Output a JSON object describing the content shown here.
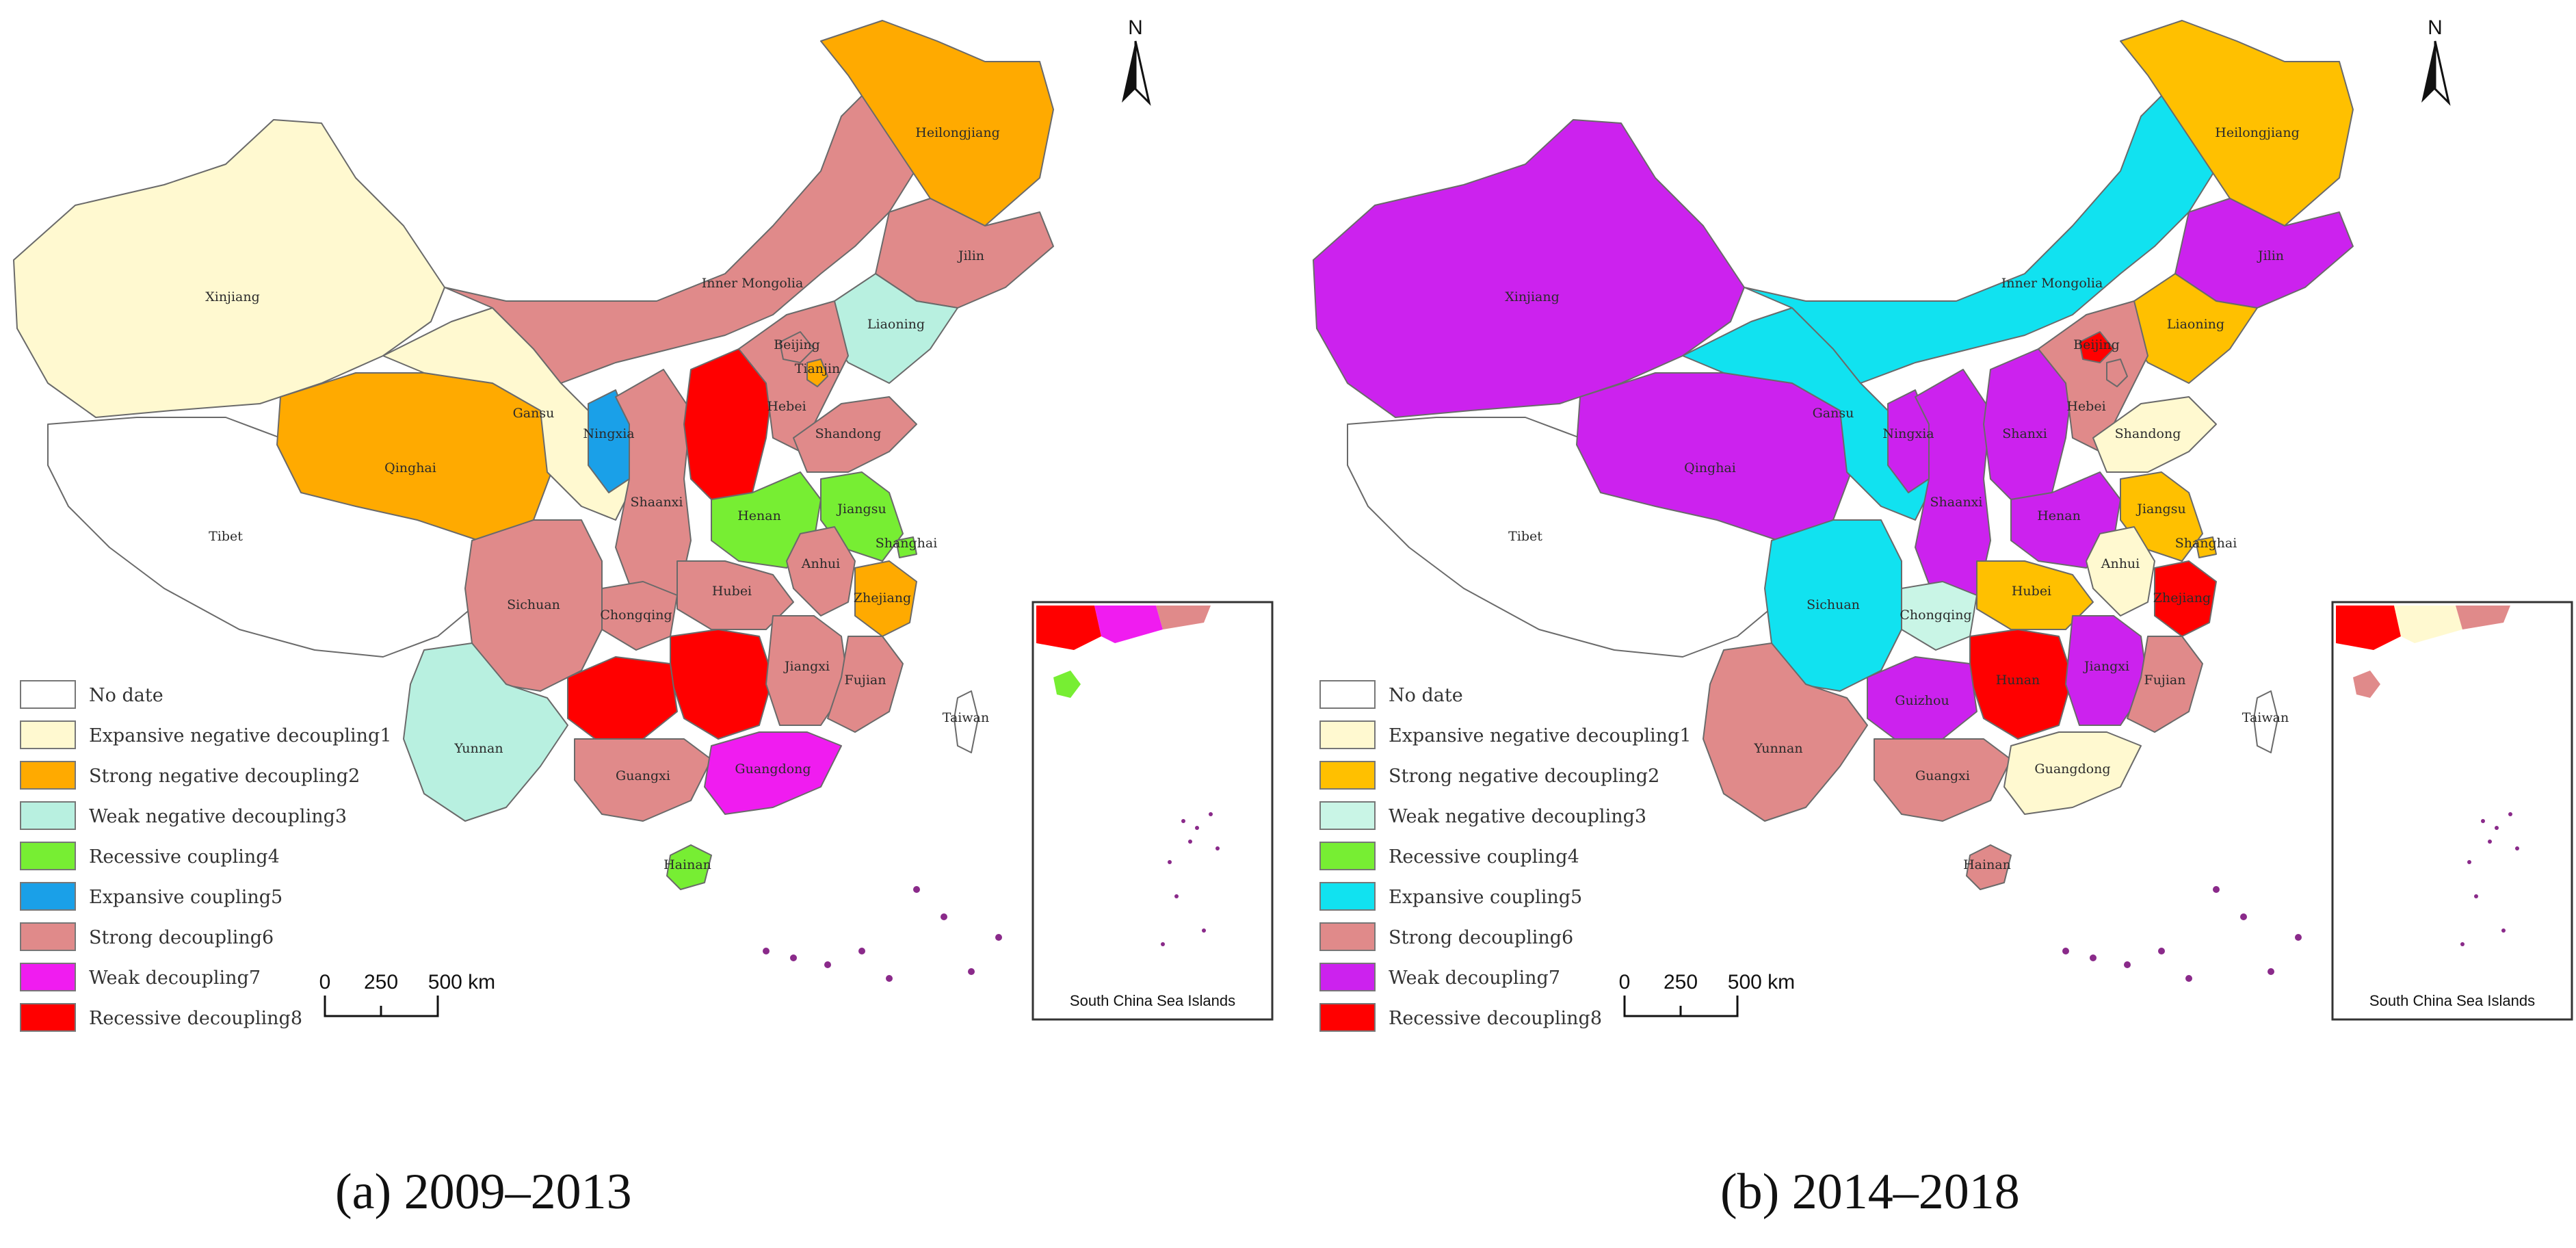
{
  "categories": [
    {
      "key": "none",
      "label": "No date",
      "color": "#ffffff"
    },
    {
      "key": "c1",
      "label": "Expansive negative decoupling1",
      "color": "#fff9d0"
    },
    {
      "key": "c2",
      "label": "Strong negative decoupling2",
      "color": "#ffc000"
    },
    {
      "key": "c3",
      "label": "Weak negative decoupling3",
      "color": "#c9f5e6"
    },
    {
      "key": "c4",
      "label": "Recessive coupling4",
      "color": "#77ee33"
    },
    {
      "key": "c5",
      "label": "Expansive coupling5",
      "color": "#16c8f0"
    },
    {
      "key": "c6",
      "label": "Strong decoupling6",
      "color": "#e08a8a"
    },
    {
      "key": "c7",
      "label": "Weak decoupling7",
      "color": "#ee22ee"
    },
    {
      "key": "c8",
      "label": "Recessive decoupling8",
      "color": "#ff0000"
    }
  ],
  "map_a_overrides": {
    "c2": "#ffaa00",
    "c5": "#1aa0e8",
    "c3": "#b8f0e0",
    "c7": "#f01cf0"
  },
  "map_b_overrides": {
    "c7": "#cc22ee",
    "c5": "#11e2f0"
  },
  "scale": {
    "ticks": [
      "0",
      "250",
      "500 km"
    ]
  },
  "north_label": "N",
  "inset_title": "South China Sea Islands",
  "maps": [
    {
      "id": "a",
      "caption": "(a) 2009–2013",
      "provinces": {
        "Heilongjiang": "c2",
        "Jilin": "c6",
        "Liaoning": "c3",
        "Inner Mongolia": "c6",
        "Xinjiang": "c1",
        "Tibet": "none",
        "Qinghai": "c2",
        "Gansu": "c1",
        "Ningxia": "c5",
        "Shaanxi": "c6",
        "Shanxi": "c8",
        "Hebei": "c6",
        "Beijing": "c6",
        "Tianjin": "c2",
        "Shandong": "c6",
        "Henan": "c4",
        "Jiangsu": "c4",
        "Anhui": "c6",
        "Shanghai": "c4",
        "Zhejiang": "c2",
        "Hubei": "c6",
        "Sichuan": "c6",
        "Chongqing": "c6",
        "Hunan": "c8",
        "Guizhou": "c8",
        "Jiangxi": "c6",
        "Fujian": "c6",
        "Yunnan": "c3",
        "Guangxi": "c6",
        "Guangdong": "c7",
        "Hainan": "c4",
        "Taiwan": "none"
      },
      "labels": {
        "Heilongjiang": "Heilongjiang",
        "Jilin": "Jilin",
        "Liaoning": "Liaoning",
        "Inner Mongolia": "Inner Mongolia",
        "Xinjiang": "Xinjiang",
        "Tibet": "Tibet",
        "Qinghai": "Qinghai",
        "Gansu": "Gansu",
        "Ningxia": "Ningxia",
        "Shaanxi": "Shaanxi",
        "Hebei": "Hebei",
        "Beijing": "Beijing",
        "Tianjin": "Tianjin",
        "Shandong": "Shandong",
        "Henan": "Henan",
        "Jiangsu": "Jiangsu",
        "Anhui": "Anhui",
        "Shanghai": "Shanghai",
        "Zhejiang": "Zhejiang",
        "Hubei": "Hubei",
        "Sichuan": "Sichuan",
        "Chongqing": "Chongqing",
        "Jiangxi": "Jiangxi",
        "Fujian": "Fujian",
        "Yunnan": "Yunnan",
        "Guangxi": "Guangxi",
        "Guangdong": "Guangdong",
        "Hainan": "Hainan",
        "Taiwan": "Taiwan"
      }
    },
    {
      "id": "b",
      "caption": "(b) 2014–2018",
      "provinces": {
        "Heilongjiang": "c2",
        "Jilin": "c7",
        "Liaoning": "c2",
        "Inner Mongolia": "c5",
        "Xinjiang": "c7",
        "Tibet": "none",
        "Qinghai": "c7",
        "Gansu": "c5",
        "Ningxia": "c7",
        "Shaanxi": "c7",
        "Shanxi": "c7",
        "Hebei": "c6",
        "Beijing": "c8",
        "Tianjin": "c6",
        "Shandong": "c1",
        "Henan": "c7",
        "Jiangsu": "c2",
        "Anhui": "c1",
        "Shanghai": "c2",
        "Zhejiang": "c8",
        "Hubei": "c2",
        "Sichuan": "c5",
        "Chongqing": "c3",
        "Hunan": "c8",
        "Guizhou": "c7",
        "Jiangxi": "c7",
        "Fujian": "c6",
        "Yunnan": "c6",
        "Guangxi": "c6",
        "Guangdong": "c1",
        "Hainan": "c6",
        "Taiwan": "none"
      },
      "labels": {
        "Heilongjiang": "Heilongjiang",
        "Jilin": "Jilin",
        "Liaoning": "Liaoning",
        "Inner Mongolia": "Inner Mongolia",
        "Xinjiang": "Xinjiang",
        "Tibet": "Tibet",
        "Qinghai": "Qinghai",
        "Gansu": "Gansu",
        "Ningxia": "Ningxia",
        "Shaanxi": "Shaanxi",
        "Shanxi": "Shanxi",
        "Hebei": "Hebei",
        "Beijing": "Beijing",
        "Shandong": "Shandong",
        "Henan": "Henan",
        "Jiangsu": "Jiangsu",
        "Anhui": "Anhui",
        "Shanghai": "Shanghai",
        "Zhejiang": "Zhejiang",
        "Hubei": "Hubei",
        "Sichuan": "Sichuan",
        "Chongqing": "Chongqing",
        "Hunan": "Hunan",
        "Guizhou": "Guizhou",
        "Jiangxi": "Jiangxi",
        "Fujian": "Fujian",
        "Yunnan": "Yunnan",
        "Guangxi": "Guangxi",
        "Guangdong": "Guangdong",
        "Hainan": "Hainan",
        "Taiwan": "Taiwan"
      }
    }
  ]
}
